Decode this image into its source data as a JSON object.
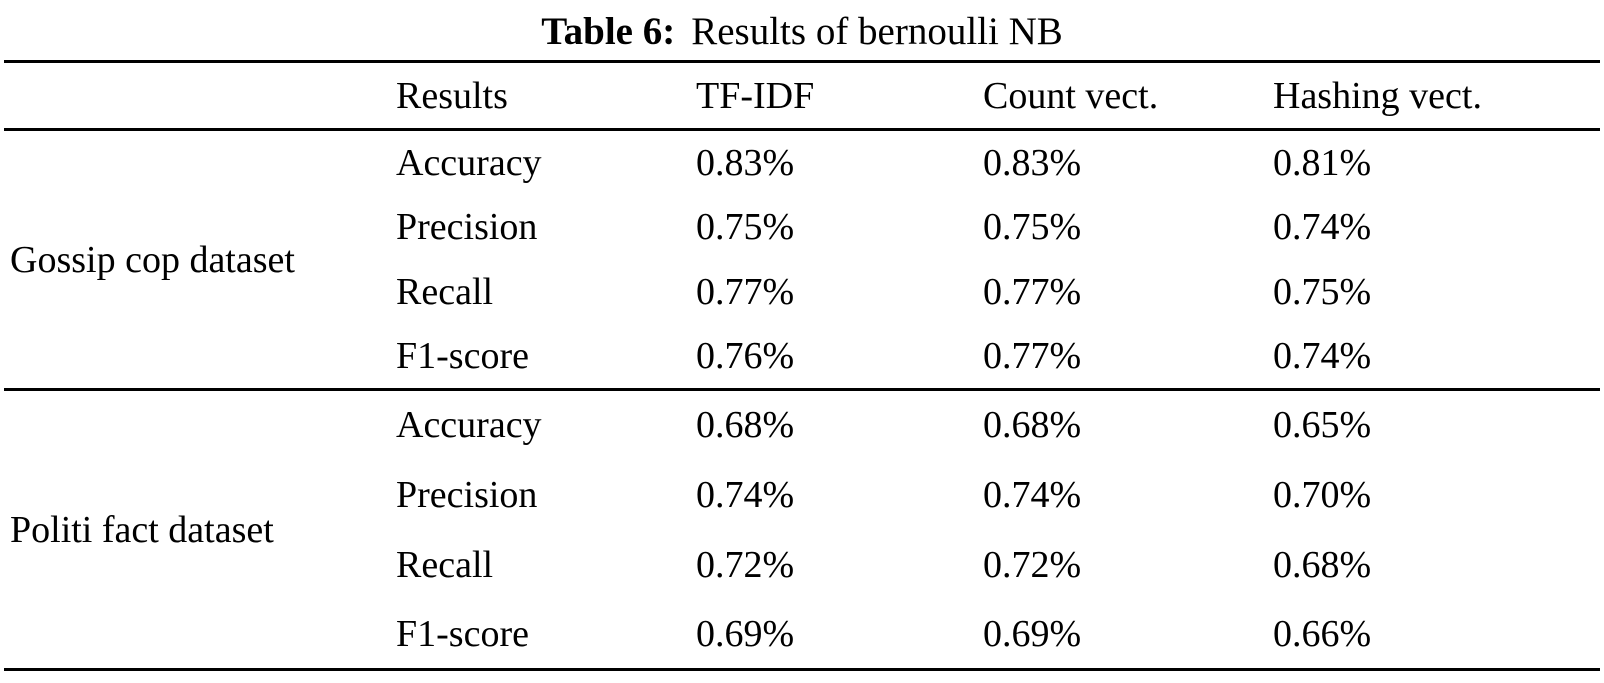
{
  "caption": {
    "label": "Table 6:",
    "text": "Results of bernoulli NB"
  },
  "table": {
    "headers": [
      "Results",
      "TF-IDF",
      "Count vect.",
      "Hashing vect."
    ],
    "groups": [
      {
        "dataset": "Gossip cop dataset",
        "rows": [
          {
            "metric": "Accuracy",
            "values": [
              "0.83%",
              "0.83%",
              "0.81%"
            ]
          },
          {
            "metric": "Precision",
            "values": [
              "0.75%",
              "0.75%",
              "0.74%"
            ]
          },
          {
            "metric": "Recall",
            "values": [
              "0.77%",
              "0.77%",
              "0.75%"
            ]
          },
          {
            "metric": "F1-score",
            "values": [
              "0.76%",
              "0.77%",
              "0.74%"
            ]
          }
        ]
      },
      {
        "dataset": "Politi fact dataset",
        "rows": [
          {
            "metric": "Accuracy",
            "values": [
              "0.68%",
              "0.68%",
              "0.65%"
            ]
          },
          {
            "metric": "Precision",
            "values": [
              "0.74%",
              "0.74%",
              "0.70%"
            ]
          },
          {
            "metric": "Recall",
            "values": [
              "0.72%",
              "0.72%",
              "0.68%"
            ]
          },
          {
            "metric": "F1-score",
            "values": [
              "0.69%",
              "0.69%",
              "0.66%"
            ]
          }
        ]
      }
    ]
  }
}
